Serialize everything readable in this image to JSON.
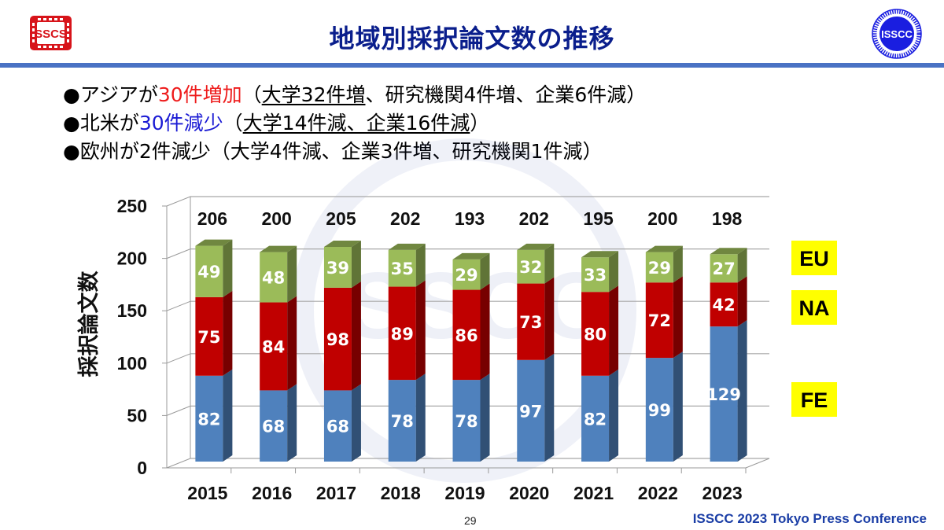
{
  "header": {
    "title": "地域別採択論文数の推移",
    "left_logo": {
      "icon": "sscs-logo-icon",
      "text": "SSCS",
      "color": "#d7141a"
    },
    "right_logo": {
      "icon": "isscc-logo-icon",
      "text": "ISSCC",
      "color": "#1a1ee0"
    }
  },
  "bullets": [
    {
      "marker": "●",
      "parts": [
        {
          "text": "アジアが",
          "style": "normal"
        },
        {
          "text": "30件増加",
          "style": "red"
        },
        {
          "text": "（",
          "style": "normal"
        },
        {
          "text": "大学32件増",
          "style": "underline"
        },
        {
          "text": "、研究機関4件増、企業6件減）",
          "style": "normal"
        }
      ]
    },
    {
      "marker": "●",
      "parts": [
        {
          "text": "北米が",
          "style": "normal"
        },
        {
          "text": "30件減少",
          "style": "blue"
        },
        {
          "text": "（",
          "style": "normal"
        },
        {
          "text": "大学14件減、企業16件減",
          "style": "underline"
        },
        {
          "text": "）",
          "style": "normal"
        }
      ]
    },
    {
      "marker": "●",
      "parts": [
        {
          "text": "欧州が2件減少（大学4件減、企業3件増、研究機関1件減）",
          "style": "normal"
        }
      ]
    }
  ],
  "chart_data": {
    "type": "bar",
    "stacked": true,
    "three_d": true,
    "title": "",
    "xlabel": "",
    "ylabel": "採択論文数",
    "ylim": [
      0,
      250
    ],
    "yticks": [
      0,
      50,
      100,
      150,
      200,
      250
    ],
    "grid": true,
    "categories": [
      "2015",
      "2016",
      "2017",
      "2018",
      "2019",
      "2020",
      "2021",
      "2022",
      "2023"
    ],
    "series": [
      {
        "name": "FE",
        "color": "#4f81bd",
        "values": [
          82,
          68,
          68,
          78,
          78,
          97,
          82,
          99,
          129
        ]
      },
      {
        "name": "NA",
        "color": "#c00000",
        "values": [
          75,
          84,
          98,
          89,
          86,
          73,
          80,
          72,
          42
        ]
      },
      {
        "name": "EU",
        "color": "#9bbb59",
        "values": [
          49,
          48,
          39,
          35,
          29,
          32,
          33,
          29,
          27
        ]
      }
    ],
    "totals": [
      206,
      200,
      205,
      202,
      193,
      202,
      195,
      200,
      198
    ],
    "legend": {
      "placement": "right",
      "style": "yellow-boxes",
      "color": "#ffff00",
      "order": [
        "EU",
        "NA",
        "FE"
      ]
    }
  },
  "footer": {
    "page_number": "29",
    "conference": "ISSCC 2023 Tokyo Press Conference"
  }
}
